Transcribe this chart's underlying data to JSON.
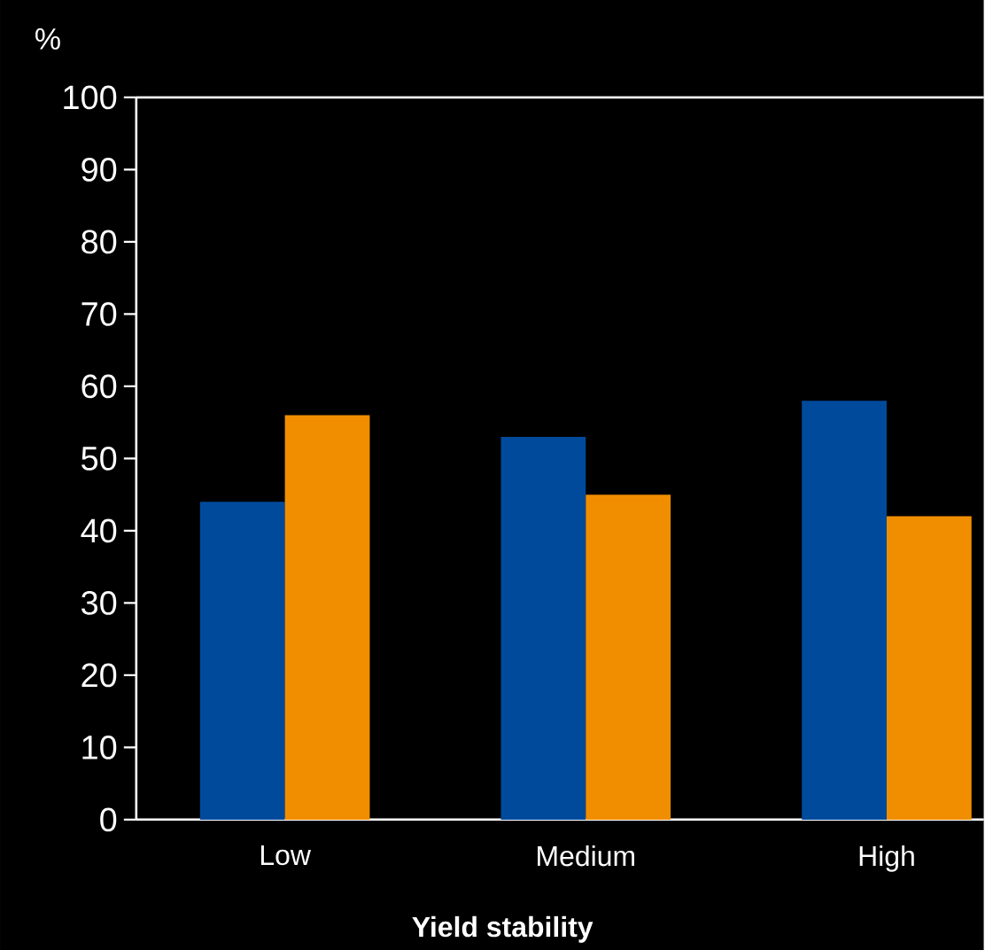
{
  "chart_data": {
    "type": "bar",
    "xlabel": "**Yield stability**",
    "ylabel": "%",
    "categories": [
      "Low",
      "Medium",
      "High"
    ],
    "series": [
      {
        "color": "#004a9c",
        "values": [
          44,
          53,
          58
        ]
      },
      {
        "color": "#f18e00",
        "values": [
          56,
          45,
          42
        ]
      }
    ],
    "ylim": [
      0,
      100
    ],
    "yticks": [
      0,
      10,
      20,
      30,
      40,
      50,
      60,
      70,
      80,
      90,
      100
    ]
  }
}
